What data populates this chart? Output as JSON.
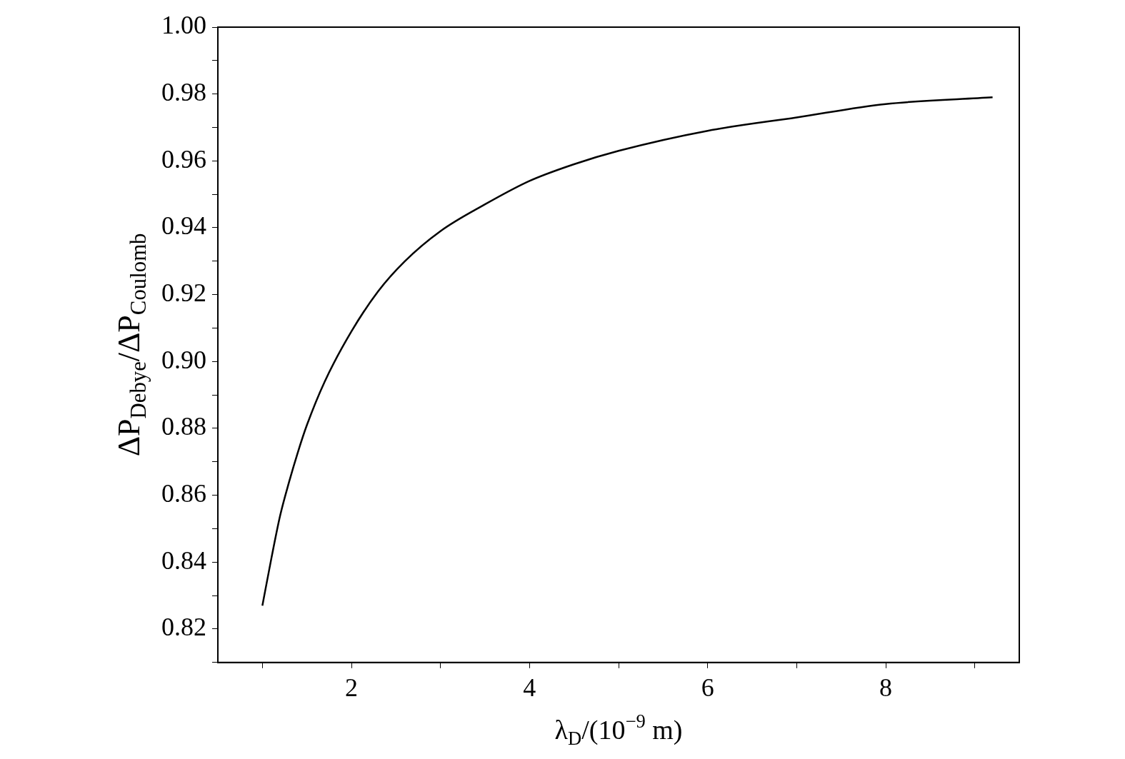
{
  "chart_data": {
    "type": "line",
    "xlabel": "λ$_{D}$/(10$^{−9}$ m)",
    "ylabel": "ΔP$_{Debye}$/ΔP$_{Coulomb}$",
    "x": [
      1,
      1.1,
      1.2,
      1.3,
      1.4,
      1.5,
      1.7,
      2,
      2.3,
      2.6,
      3,
      3.5,
      4,
      4.5,
      5,
      6,
      7,
      8,
      9.2
    ],
    "series": [
      {
        "color": "#000000",
        "values": [
          0.827,
          0.841,
          0.854,
          0.864,
          0.873,
          0.881,
          0.894,
          0.909,
          0.921,
          0.93,
          0.939,
          0.947,
          0.954,
          0.959,
          0.963,
          0.969,
          0.973,
          0.977,
          0.979
        ]
      }
    ],
    "xlim": [
      0.5,
      9.5
    ],
    "ylim": [
      0.81,
      1.0
    ],
    "xticks": [
      {
        "value": 1,
        "label": null
      },
      2,
      {
        "value": 3,
        "label": null
      },
      4,
      {
        "value": 5,
        "label": null
      },
      6,
      {
        "value": 7,
        "label": null
      },
      8,
      {
        "value": 9,
        "label": null
      }
    ],
    "yticks": [
      {
        "value": 0.81,
        "label": null
      },
      {
        "value": 0.82,
        "label": "0.82"
      },
      {
        "value": 0.83,
        "label": null
      },
      {
        "value": 0.84,
        "label": "0.84"
      },
      {
        "value": 0.85,
        "label": null
      },
      {
        "value": 0.86,
        "label": "0.86"
      },
      {
        "value": 0.87,
        "label": null
      },
      {
        "value": 0.88,
        "label": "0.88"
      },
      {
        "value": 0.89,
        "label": null
      },
      {
        "value": 0.9,
        "label": "0.90"
      },
      {
        "value": 0.91,
        "label": null
      },
      {
        "value": 0.92,
        "label": "0.92"
      },
      {
        "value": 0.93,
        "label": null
      },
      {
        "value": 0.94,
        "label": "0.94"
      },
      {
        "value": 0.95,
        "label": null
      },
      {
        "value": 0.96,
        "label": "0.96"
      },
      {
        "value": 0.97,
        "label": null
      },
      {
        "value": 0.98,
        "label": "0.98"
      },
      {
        "value": 0.99,
        "label": null
      },
      {
        "value": 1.0,
        "label": "1.00"
      }
    ],
    "grid": false,
    "legend": false,
    "marker": "none",
    "line_style": "solid"
  }
}
